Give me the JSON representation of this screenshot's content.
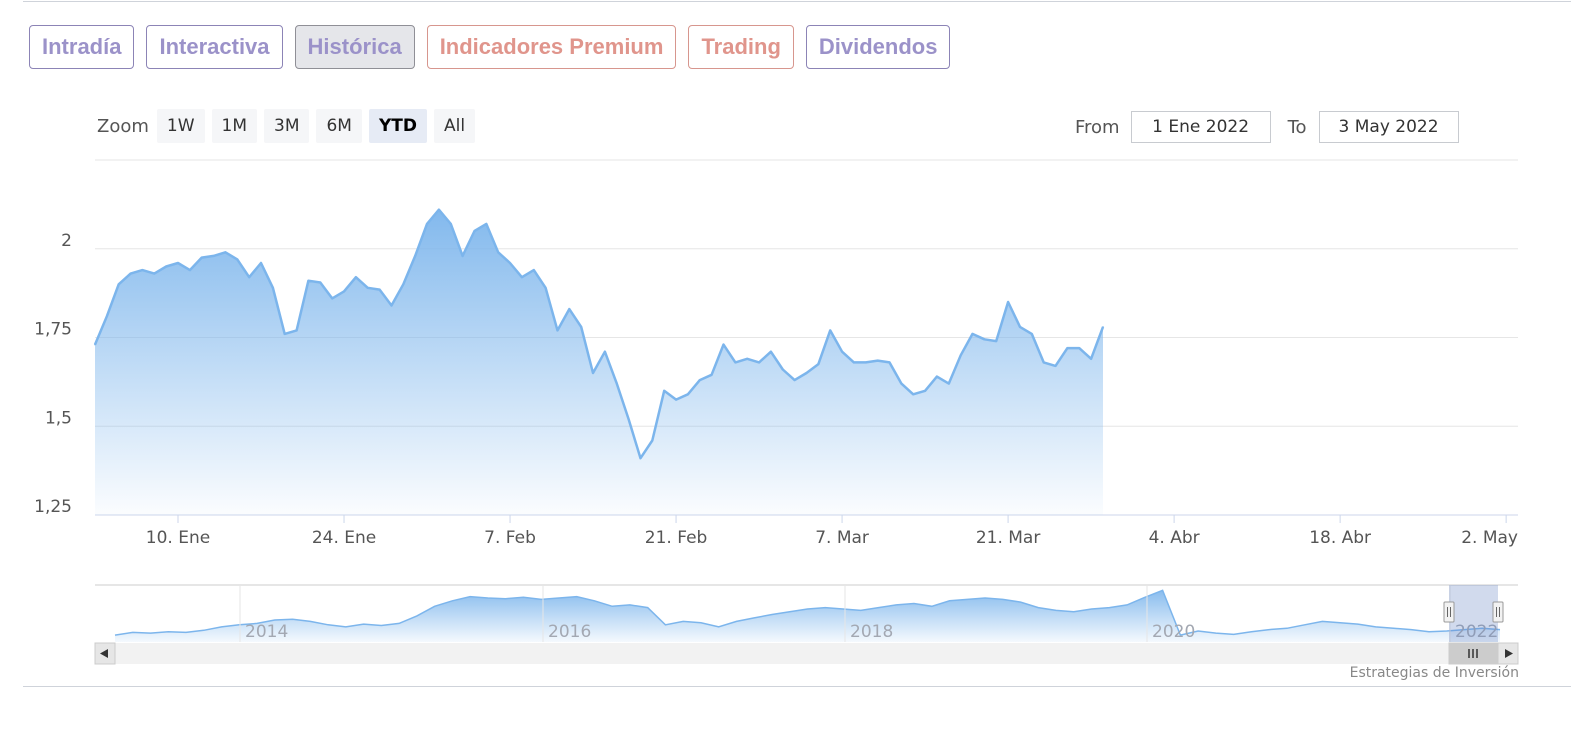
{
  "tabs": [
    {
      "label": "Intradía",
      "active": false
    },
    {
      "label": "Interactiva",
      "active": false
    },
    {
      "label": "Histórica",
      "active": true
    },
    {
      "label": "Indicadores Premium",
      "active": false
    },
    {
      "label": "Trading",
      "active": false
    },
    {
      "label": "Dividendos",
      "active": false
    }
  ],
  "zoom": {
    "label": "Zoom",
    "buttons": [
      "1W",
      "1M",
      "3M",
      "6M",
      "YTD",
      "All"
    ],
    "selected": "YTD"
  },
  "range": {
    "from_label": "From",
    "from_value": "1 Ene 2022",
    "to_label": "To",
    "to_value": "3 May 2022"
  },
  "credit": "Estrategias de Inversión",
  "chart_data": {
    "type": "area",
    "title": "",
    "xlabel": "",
    "ylabel": "",
    "ylim": [
      1.25,
      2.25
    ],
    "yticks": [
      {
        "value": 2,
        "label": "2"
      },
      {
        "value": 1.75,
        "label": "1,75"
      },
      {
        "value": 1.5,
        "label": "1,5"
      },
      {
        "value": 1.25,
        "label": "1,25"
      }
    ],
    "xlim": [
      "2022-01-03",
      "2022-05-03"
    ],
    "xticks": [
      {
        "date": "2022-01-10",
        "label": "10. Ene"
      },
      {
        "date": "2022-01-24",
        "label": "24. Ene"
      },
      {
        "date": "2022-02-07",
        "label": "7. Feb"
      },
      {
        "date": "2022-02-21",
        "label": "21. Feb"
      },
      {
        "date": "2022-03-07",
        "label": "7. Mar"
      },
      {
        "date": "2022-03-21",
        "label": "21. Mar"
      },
      {
        "date": "2022-04-04",
        "label": "4. Abr"
      },
      {
        "date": "2022-04-18",
        "label": "18. Abr"
      },
      {
        "date": "2022-05-02",
        "label": "2. May"
      }
    ],
    "grid": true,
    "legend": "none",
    "series_color": "#7cb5ec",
    "series": [
      {
        "points": [
          [
            "2022-01-03",
            1.73
          ],
          [
            "2022-01-04",
            1.81
          ],
          [
            "2022-01-05",
            1.9
          ],
          [
            "2022-01-06",
            1.93
          ],
          [
            "2022-01-07",
            1.94
          ],
          [
            "2022-01-08",
            1.93
          ],
          [
            "2022-01-09",
            1.95
          ],
          [
            "2022-01-10",
            1.96
          ],
          [
            "2022-01-11",
            1.94
          ],
          [
            "2022-01-12",
            1.975
          ],
          [
            "2022-01-13",
            1.98
          ],
          [
            "2022-01-14",
            1.99
          ],
          [
            "2022-01-15",
            1.97
          ],
          [
            "2022-01-16",
            1.92
          ],
          [
            "2022-01-17",
            1.96
          ],
          [
            "2022-01-18",
            1.89
          ],
          [
            "2022-01-19",
            1.76
          ],
          [
            "2022-01-20",
            1.77
          ],
          [
            "2022-01-21",
            1.91
          ],
          [
            "2022-01-22",
            1.905
          ],
          [
            "2022-01-23",
            1.86
          ],
          [
            "2022-01-24",
            1.88
          ],
          [
            "2022-01-25",
            1.92
          ],
          [
            "2022-01-26",
            1.89
          ],
          [
            "2022-01-27",
            1.885
          ],
          [
            "2022-01-28",
            1.84
          ],
          [
            "2022-01-29",
            1.9
          ],
          [
            "2022-01-30",
            1.98
          ],
          [
            "2022-01-31",
            2.07
          ],
          [
            "2022-02-01",
            2.11
          ],
          [
            "2022-02-02",
            2.07
          ],
          [
            "2022-02-03",
            1.98
          ],
          [
            "2022-02-04",
            2.05
          ],
          [
            "2022-02-05",
            2.07
          ],
          [
            "2022-02-06",
            1.99
          ],
          [
            "2022-02-07",
            1.96
          ],
          [
            "2022-02-08",
            1.92
          ],
          [
            "2022-02-09",
            1.94
          ],
          [
            "2022-02-10",
            1.89
          ],
          [
            "2022-02-11",
            1.77
          ],
          [
            "2022-02-12",
            1.83
          ],
          [
            "2022-02-13",
            1.78
          ],
          [
            "2022-02-14",
            1.65
          ],
          [
            "2022-02-15",
            1.71
          ],
          [
            "2022-02-16",
            1.62
          ],
          [
            "2022-02-17",
            1.52
          ],
          [
            "2022-02-18",
            1.41
          ],
          [
            "2022-02-19",
            1.46
          ],
          [
            "2022-02-20",
            1.6
          ],
          [
            "2022-02-21",
            1.575
          ],
          [
            "2022-02-22",
            1.59
          ],
          [
            "2022-02-23",
            1.63
          ],
          [
            "2022-02-24",
            1.645
          ],
          [
            "2022-02-25",
            1.73
          ],
          [
            "2022-02-26",
            1.68
          ],
          [
            "2022-02-27",
            1.69
          ],
          [
            "2022-02-28",
            1.68
          ],
          [
            "2022-03-01",
            1.71
          ],
          [
            "2022-03-02",
            1.66
          ],
          [
            "2022-03-03",
            1.63
          ],
          [
            "2022-03-04",
            1.65
          ],
          [
            "2022-03-05",
            1.675
          ],
          [
            "2022-03-06",
            1.77
          ],
          [
            "2022-03-07",
            1.71
          ],
          [
            "2022-03-08",
            1.68
          ],
          [
            "2022-03-09",
            1.68
          ],
          [
            "2022-03-10",
            1.685
          ],
          [
            "2022-03-11",
            1.68
          ],
          [
            "2022-03-12",
            1.62
          ],
          [
            "2022-03-13",
            1.59
          ],
          [
            "2022-03-14",
            1.6
          ],
          [
            "2022-03-15",
            1.64
          ],
          [
            "2022-03-16",
            1.62
          ],
          [
            "2022-03-17",
            1.7
          ],
          [
            "2022-03-18",
            1.76
          ],
          [
            "2022-03-19",
            1.745
          ],
          [
            "2022-03-20",
            1.74
          ],
          [
            "2022-03-21",
            1.85
          ],
          [
            "2022-03-22",
            1.78
          ],
          [
            "2022-03-23",
            1.76
          ],
          [
            "2022-03-24",
            1.68
          ],
          [
            "2022-03-25",
            1.67
          ],
          [
            "2022-03-26",
            1.72
          ],
          [
            "2022-03-27",
            1.72
          ],
          [
            "2022-03-28",
            1.69
          ],
          [
            "2022-03-29",
            1.78
          ]
        ]
      }
    ],
    "navigator": {
      "type": "area",
      "years": [
        "2014",
        "2016",
        "2018",
        "2020",
        "2022"
      ],
      "values": [
        1.3,
        1.34,
        1.33,
        1.35,
        1.34,
        1.37,
        1.42,
        1.45,
        1.47,
        1.52,
        1.53,
        1.5,
        1.45,
        1.42,
        1.46,
        1.44,
        1.47,
        1.58,
        1.72,
        1.8,
        1.86,
        1.84,
        1.83,
        1.85,
        1.82,
        1.84,
        1.86,
        1.8,
        1.72,
        1.74,
        1.7,
        1.45,
        1.5,
        1.48,
        1.42,
        1.5,
        1.55,
        1.6,
        1.64,
        1.68,
        1.7,
        1.68,
        1.66,
        1.7,
        1.74,
        1.76,
        1.72,
        1.8,
        1.82,
        1.84,
        1.82,
        1.78,
        1.7,
        1.66,
        1.64,
        1.68,
        1.7,
        1.74,
        1.85,
        1.95,
        1.3,
        1.36,
        1.33,
        1.31,
        1.35,
        1.38,
        1.4,
        1.45,
        1.5,
        1.48,
        1.46,
        1.42,
        1.4,
        1.38,
        1.35,
        1.36,
        1.38,
        1.4,
        1.38
      ]
    }
  }
}
